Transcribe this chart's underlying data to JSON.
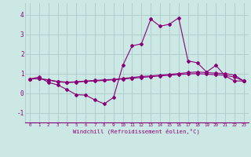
{
  "xlabel": "Windchill (Refroidissement éolien,°C)",
  "x_ticks": [
    0,
    1,
    2,
    3,
    4,
    5,
    6,
    7,
    8,
    9,
    10,
    11,
    12,
    13,
    14,
    15,
    16,
    17,
    18,
    19,
    20,
    21,
    22,
    23
  ],
  "ylim": [
    -1.5,
    4.6
  ],
  "yticks": [
    -1,
    0,
    1,
    2,
    3,
    4
  ],
  "bg_color": "#cce8e4",
  "grid_color": "#aacccc",
  "line_color": "#880077",
  "line1_y": [
    0.72,
    0.82,
    0.55,
    0.42,
    0.18,
    -0.08,
    -0.1,
    -0.35,
    -0.55,
    -0.22,
    1.42,
    2.42,
    2.52,
    3.78,
    3.42,
    3.52,
    3.85,
    1.65,
    1.55,
    1.08,
    1.42,
    0.88,
    0.62,
    0.62
  ],
  "line2_y": [
    0.72,
    0.74,
    0.68,
    0.6,
    0.56,
    0.58,
    0.62,
    0.65,
    0.68,
    0.7,
    0.75,
    0.8,
    0.85,
    0.88,
    0.92,
    0.96,
    1.0,
    1.05,
    1.08,
    1.05,
    1.02,
    1.0,
    0.92,
    0.62
  ],
  "line3_y": [
    0.72,
    0.74,
    0.66,
    0.58,
    0.54,
    0.56,
    0.6,
    0.62,
    0.65,
    0.68,
    0.72,
    0.76,
    0.8,
    0.84,
    0.88,
    0.91,
    0.95,
    0.98,
    1.0,
    0.97,
    0.94,
    0.91,
    0.82,
    0.62
  ]
}
